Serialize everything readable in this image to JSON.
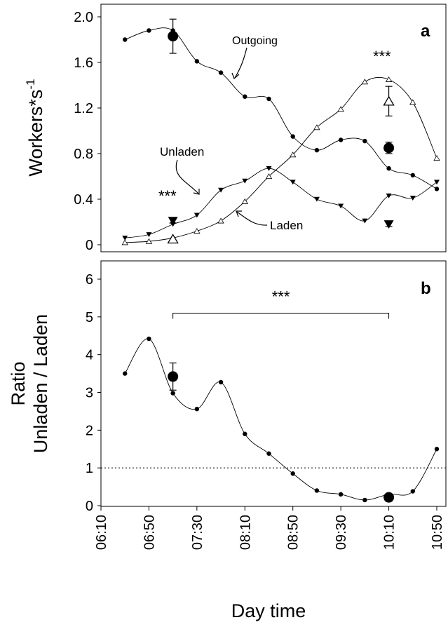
{
  "chart_data": [
    {
      "panel": "a",
      "type": "line",
      "xlabel": "Day time",
      "ylabel": "Workers*s",
      "ylabel_sup": "-1",
      "ylim": [
        0,
        2.0
      ],
      "yticks": [
        "0",
        "0.4",
        "0.8",
        "1.2",
        "1.6",
        "2.0"
      ],
      "xlim": [
        "06:10",
        "10:50"
      ],
      "series": [
        {
          "name": "Outgoing",
          "marker": "circle",
          "x": [
            "06:30",
            "06:50",
            "07:10",
            "07:30",
            "07:50",
            "08:10",
            "08:30",
            "08:50",
            "09:10",
            "09:30",
            "09:50",
            "10:10",
            "10:30",
            "10:50"
          ],
          "y": [
            1.8,
            1.88,
            1.88,
            1.61,
            1.51,
            1.3,
            1.28,
            0.95,
            0.83,
            0.92,
            0.91,
            0.67,
            0.61,
            0.49
          ]
        },
        {
          "name": "Unladen",
          "marker": "triangle-down",
          "x": [
            "06:30",
            "06:50",
            "07:10",
            "07:30",
            "07:50",
            "08:10",
            "08:30",
            "08:50",
            "09:10",
            "09:30",
            "09:50",
            "10:10",
            "10:30",
            "10:50"
          ],
          "y": [
            0.06,
            0.09,
            0.18,
            0.26,
            0.48,
            0.56,
            0.67,
            0.55,
            0.4,
            0.34,
            0.21,
            0.43,
            0.41,
            0.55
          ]
        },
        {
          "name": "Laden",
          "marker": "triangle-up-open",
          "x": [
            "06:30",
            "06:50",
            "07:10",
            "07:30",
            "07:50",
            "08:10",
            "08:30",
            "08:50",
            "09:10",
            "09:30",
            "09:50",
            "10:10",
            "10:30",
            "10:50"
          ],
          "y": [
            0.02,
            0.03,
            0.06,
            0.12,
            0.21,
            0.38,
            0.6,
            0.79,
            1.03,
            1.19,
            1.43,
            1.45,
            1.25,
            0.76
          ]
        }
      ],
      "means": [
        {
          "series": "Outgoing",
          "marker": "circle",
          "x": "07:10",
          "y": 1.83,
          "err": 0.15
        },
        {
          "series": "Outgoing",
          "marker": "circle",
          "x": "10:10",
          "y": 0.85,
          "err": 0.05
        },
        {
          "series": "Unladen",
          "marker": "triangle-down",
          "x": "07:10",
          "y": 0.21,
          "err": 0.02
        },
        {
          "series": "Unladen",
          "marker": "triangle-down",
          "x": "10:10",
          "y": 0.18,
          "err": 0.02
        },
        {
          "series": "Laden",
          "marker": "triangle-up-open",
          "x": "07:10",
          "y": 0.05,
          "err": 0.0
        },
        {
          "series": "Laden",
          "marker": "triangle-up-open",
          "x": "10:10",
          "y": 1.26,
          "err": 0.13
        }
      ],
      "annotations": [
        {
          "text": "a",
          "role": "panel-letter"
        },
        {
          "text": "Outgoing",
          "role": "series-label"
        },
        {
          "text": "Unladen",
          "role": "series-label"
        },
        {
          "text": "Laden",
          "role": "series-label"
        },
        {
          "text": "***",
          "role": "significance-morning"
        },
        {
          "text": "***",
          "role": "significance-late"
        }
      ]
    },
    {
      "panel": "b",
      "type": "line",
      "xlabel": "Day time",
      "ylabel_line1": "Ratio",
      "ylabel_line2": "Unladen / Laden",
      "ylim": [
        0,
        6.5
      ],
      "yticks": [
        "0",
        "1",
        "2",
        "3",
        "4",
        "5",
        "6"
      ],
      "xlim": [
        "06:10",
        "10:50"
      ],
      "xticks": [
        "06:10",
        "06:50",
        "07:30",
        "08:10",
        "08:50",
        "09:30",
        "10:10",
        "10:50"
      ],
      "reference_line": 1,
      "series": [
        {
          "name": "",
          "marker": "circle",
          "x": [
            "06:30",
            "06:50",
            "07:10",
            "07:30",
            "07:50",
            "08:10",
            "08:30",
            "08:50",
            "09:10",
            "09:30",
            "09:50",
            "10:10",
            "10:30",
            "10:50"
          ],
          "y": [
            3.5,
            4.42,
            2.98,
            2.56,
            3.27,
            1.9,
            1.38,
            0.85,
            0.4,
            0.3,
            0.15,
            0.3,
            0.38,
            1.5
          ]
        }
      ],
      "means": [
        {
          "marker": "circle",
          "x": "07:10",
          "y": 3.42,
          "err": 0.36
        },
        {
          "marker": "circle",
          "x": "10:10",
          "y": 0.22,
          "err": 0.0
        }
      ],
      "bracket": {
        "from": "07:10",
        "to": "10:10",
        "y": 5.1,
        "label": "***"
      },
      "annotations": [
        {
          "text": "b",
          "role": "panel-letter"
        }
      ]
    }
  ]
}
